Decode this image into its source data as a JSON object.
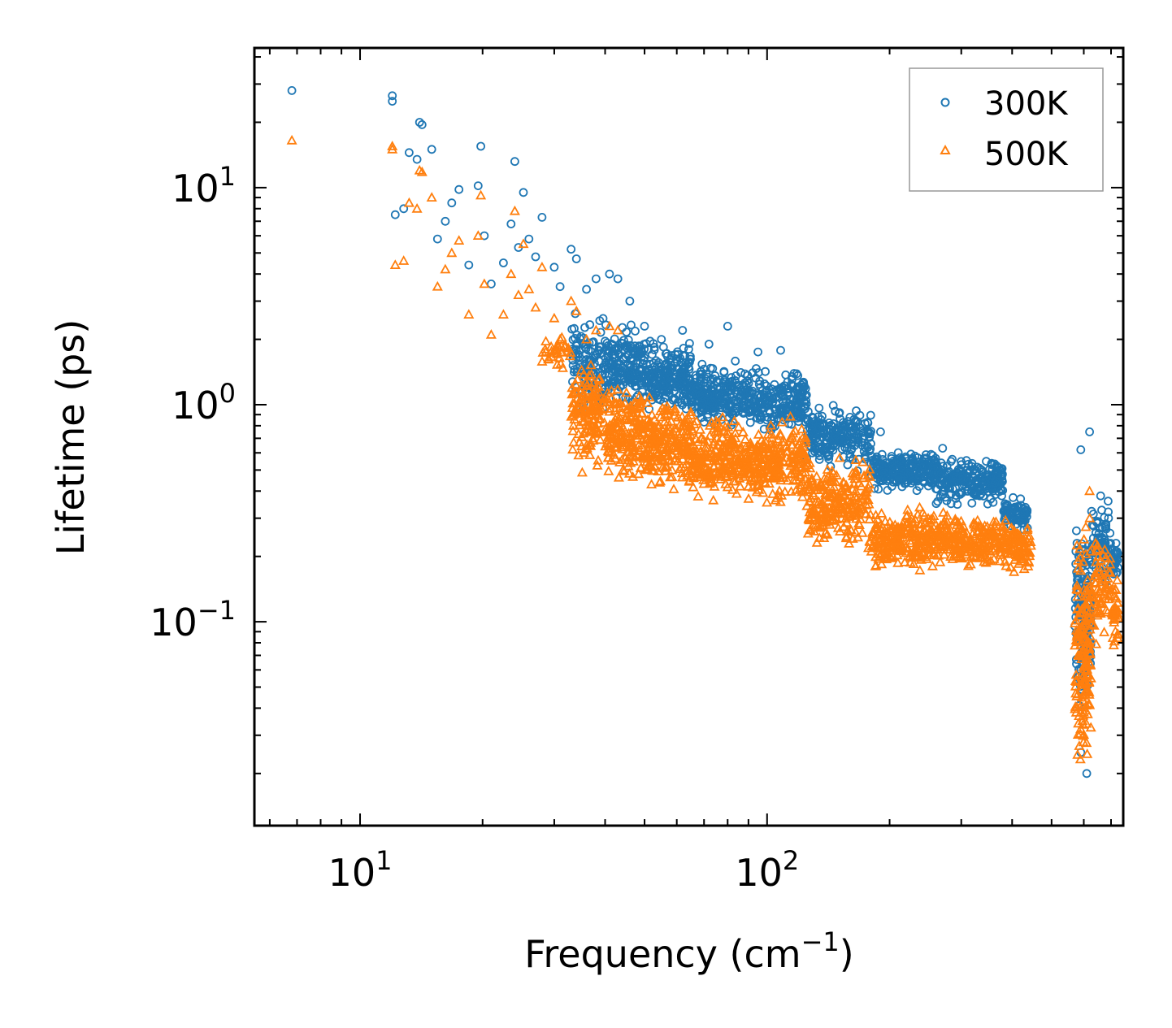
{
  "chart_data": {
    "type": "scatter",
    "title": "",
    "xlabel": "Frequency (cm",
    "xlabel_sup": "−1",
    "xlabel_end": ")",
    "ylabel": "Lifetime (ps)",
    "xscale": "log",
    "yscale": "log",
    "xlim": [
      5.5,
      750
    ],
    "ylim": [
      0.0115,
      44
    ],
    "x_ticks": [
      {
        "value": 10,
        "base": "10",
        "exp": "1"
      },
      {
        "value": 100,
        "base": "10",
        "exp": "2"
      }
    ],
    "y_ticks": [
      {
        "value": 10,
        "base": "10",
        "exp": "1"
      },
      {
        "value": 1,
        "base": "10",
        "exp": "0"
      },
      {
        "value": 0.1,
        "base": "10",
        "exp": "−1"
      }
    ],
    "legend_position": "top-right",
    "series": [
      {
        "name": "300K",
        "marker": "circle",
        "color": "#1f77b4",
        "points": [
          [
            6.8,
            28
          ],
          [
            12,
            25
          ],
          [
            12,
            26.5
          ],
          [
            12.2,
            7.5
          ],
          [
            12.8,
            8
          ],
          [
            13.2,
            14.5
          ],
          [
            13.8,
            13.5
          ],
          [
            14,
            20
          ],
          [
            14.2,
            19.5
          ],
          [
            15,
            15
          ],
          [
            15.5,
            5.8
          ],
          [
            16.2,
            7
          ],
          [
            16.8,
            8.5
          ],
          [
            17.5,
            9.8
          ],
          [
            18.5,
            4.4
          ],
          [
            19.5,
            10.2
          ],
          [
            19.8,
            15.5
          ],
          [
            20.2,
            6.0
          ],
          [
            21,
            3.6
          ],
          [
            22.5,
            4.5
          ],
          [
            23.5,
            6.8
          ],
          [
            24,
            13.2
          ],
          [
            24.5,
            5.3
          ],
          [
            25.2,
            9.5
          ],
          [
            26,
            5.8
          ],
          [
            27,
            4.8
          ],
          [
            28,
            7.3
          ],
          [
            30,
            4.3
          ],
          [
            31,
            3.5
          ],
          [
            33,
            5.2
          ],
          [
            34,
            4.7
          ],
          [
            36,
            3.4
          ],
          [
            38,
            3.8
          ],
          [
            41,
            4.0
          ],
          [
            43,
            3.8
          ],
          [
            46,
            3.0
          ],
          [
            50,
            2.3
          ],
          [
            55,
            2.0
          ],
          [
            62,
            2.2
          ],
          [
            72,
            1.9
          ],
          [
            80,
            2.3
          ],
          [
            95,
            1.75
          ],
          [
            108,
            1.78
          ],
          [
            190,
            0.75
          ],
          [
            270,
            0.63
          ],
          [
            590,
            0.62
          ],
          [
            620,
            0.75
          ],
          [
            660,
            0.38
          ],
          [
            690,
            0.3
          ],
          [
            720,
            0.23
          ],
          [
            590,
            0.025
          ],
          [
            610,
            0.02
          ]
        ],
        "bands": [
          {
            "x": [
              33,
              40
            ],
            "y": [
              0.8,
              2.9
            ],
            "n": 120
          },
          {
            "x": [
              40,
              50
            ],
            "y": [
              0.9,
              2.6
            ],
            "n": 170
          },
          {
            "x": [
              50,
              65
            ],
            "y": [
              0.85,
              2.1
            ],
            "n": 210
          },
          {
            "x": [
              65,
              90
            ],
            "y": [
              0.75,
              1.65
            ],
            "n": 230
          },
          {
            "x": [
              90,
              125
            ],
            "y": [
              0.7,
              1.55
            ],
            "n": 220
          },
          {
            "x": [
              125,
              180
            ],
            "y": [
              0.48,
              1.05
            ],
            "n": 230
          },
          {
            "x": [
              180,
              260
            ],
            "y": [
              0.38,
              0.65
            ],
            "n": 230
          },
          {
            "x": [
              260,
              380
            ],
            "y": [
              0.33,
              0.6
            ],
            "n": 240
          },
          {
            "x": [
              380,
              440
            ],
            "y": [
              0.26,
              0.38
            ],
            "n": 80
          },
          {
            "x": [
              570,
              625
            ],
            "y": [
              0.03,
              0.36
            ],
            "n": 150
          },
          {
            "x": [
              625,
              700
            ],
            "y": [
              0.13,
              0.42
            ],
            "n": 70
          },
          {
            "x": [
              700,
              730
            ],
            "y": [
              0.15,
              0.23
            ],
            "n": 30
          }
        ]
      },
      {
        "name": "500K",
        "marker": "triangle",
        "color": "#ff7f0e",
        "points": [
          [
            6.8,
            16.5
          ],
          [
            12,
            15.5
          ],
          [
            12,
            15
          ],
          [
            12.2,
            4.4
          ],
          [
            12.8,
            4.6
          ],
          [
            13.2,
            8.5
          ],
          [
            13.8,
            8.0
          ],
          [
            14,
            12
          ],
          [
            14.2,
            11.8
          ],
          [
            15,
            9
          ],
          [
            15.5,
            3.5
          ],
          [
            16.2,
            4.2
          ],
          [
            16.8,
            5.0
          ],
          [
            17.5,
            5.7
          ],
          [
            18.5,
            2.6
          ],
          [
            19.5,
            6.0
          ],
          [
            19.8,
            9.2
          ],
          [
            20.2,
            3.6
          ],
          [
            21,
            2.1
          ],
          [
            22.5,
            2.6
          ],
          [
            23.5,
            4.0
          ],
          [
            24,
            7.8
          ],
          [
            24.5,
            3.2
          ],
          [
            25.2,
            5.5
          ],
          [
            26,
            3.4
          ],
          [
            27,
            2.8
          ],
          [
            28,
            4.3
          ],
          [
            30,
            2.5
          ],
          [
            31,
            2.0
          ],
          [
            33,
            3.0
          ],
          [
            34,
            2.7
          ],
          [
            36,
            2.0
          ],
          [
            38,
            2.2
          ],
          [
            41,
            2.3
          ],
          [
            43,
            2.2
          ],
          [
            620,
            0.4
          ],
          [
            720,
            0.14
          ]
        ],
        "bands": [
          {
            "x": [
              28,
              33
            ],
            "y": [
              1.4,
              2.2
            ],
            "n": 30
          },
          {
            "x": [
              33,
              40
            ],
            "y": [
              0.45,
              1.8
            ],
            "n": 140
          },
          {
            "x": [
              40,
              50
            ],
            "y": [
              0.4,
              1.4
            ],
            "n": 180
          },
          {
            "x": [
              50,
              65
            ],
            "y": [
              0.38,
              1.15
            ],
            "n": 220
          },
          {
            "x": [
              65,
              90
            ],
            "y": [
              0.32,
              1.0
            ],
            "n": 240
          },
          {
            "x": [
              90,
              125
            ],
            "y": [
              0.3,
              0.95
            ],
            "n": 240
          },
          {
            "x": [
              125,
              180
            ],
            "y": [
              0.2,
              0.62
            ],
            "n": 240
          },
          {
            "x": [
              180,
              260
            ],
            "y": [
              0.16,
              0.36
            ],
            "n": 230
          },
          {
            "x": [
              260,
              380
            ],
            "y": [
              0.17,
              0.34
            ],
            "n": 240
          },
          {
            "x": [
              380,
              445
            ],
            "y": [
              0.16,
              0.32
            ],
            "n": 90
          },
          {
            "x": [
              570,
              625
            ],
            "y": [
              0.015,
              0.38
            ],
            "n": 170
          },
          {
            "x": [
              625,
              700
            ],
            "y": [
              0.07,
              0.3
            ],
            "n": 70
          },
          {
            "x": [
              700,
              730
            ],
            "y": [
              0.065,
              0.17
            ],
            "n": 30
          }
        ]
      }
    ]
  }
}
